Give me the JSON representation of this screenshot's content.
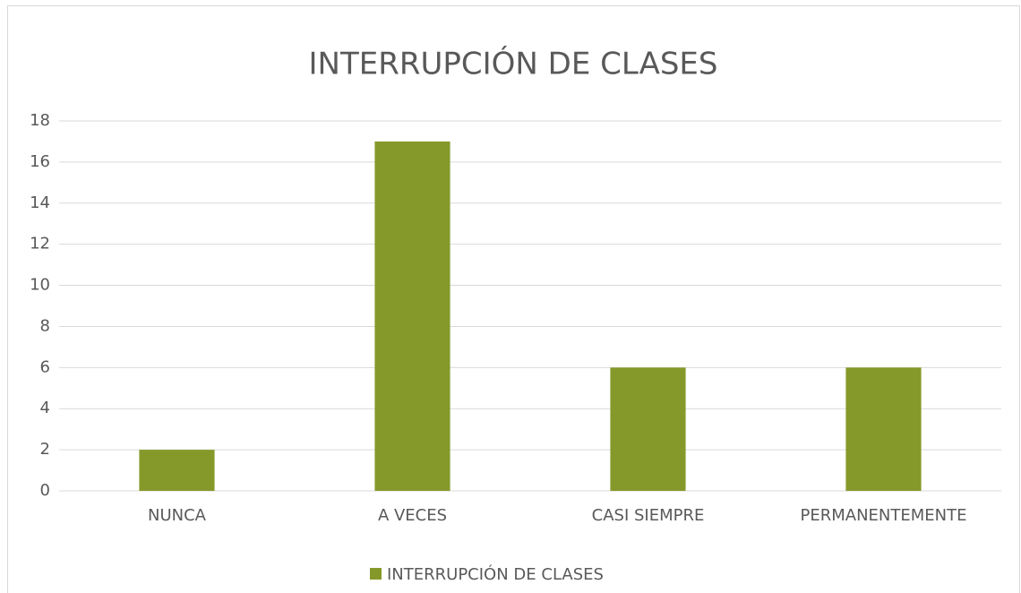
{
  "chart_data": {
    "type": "bar",
    "title": "INTERRUPCIÓN DE CLASES",
    "categories": [
      "NUNCA",
      "A VECES",
      "CASI SIEMPRE",
      "PERMANENTEMENTE"
    ],
    "series": [
      {
        "name": "INTERRUPCIÓN DE CLASES",
        "color": "#84992a",
        "values": [
          2,
          17,
          6,
          6
        ]
      }
    ],
    "ylim": [
      0,
      18
    ],
    "yticks": [
      0,
      2,
      4,
      6,
      8,
      10,
      12,
      14,
      16,
      18
    ],
    "grid": true,
    "legend": "bottom"
  }
}
